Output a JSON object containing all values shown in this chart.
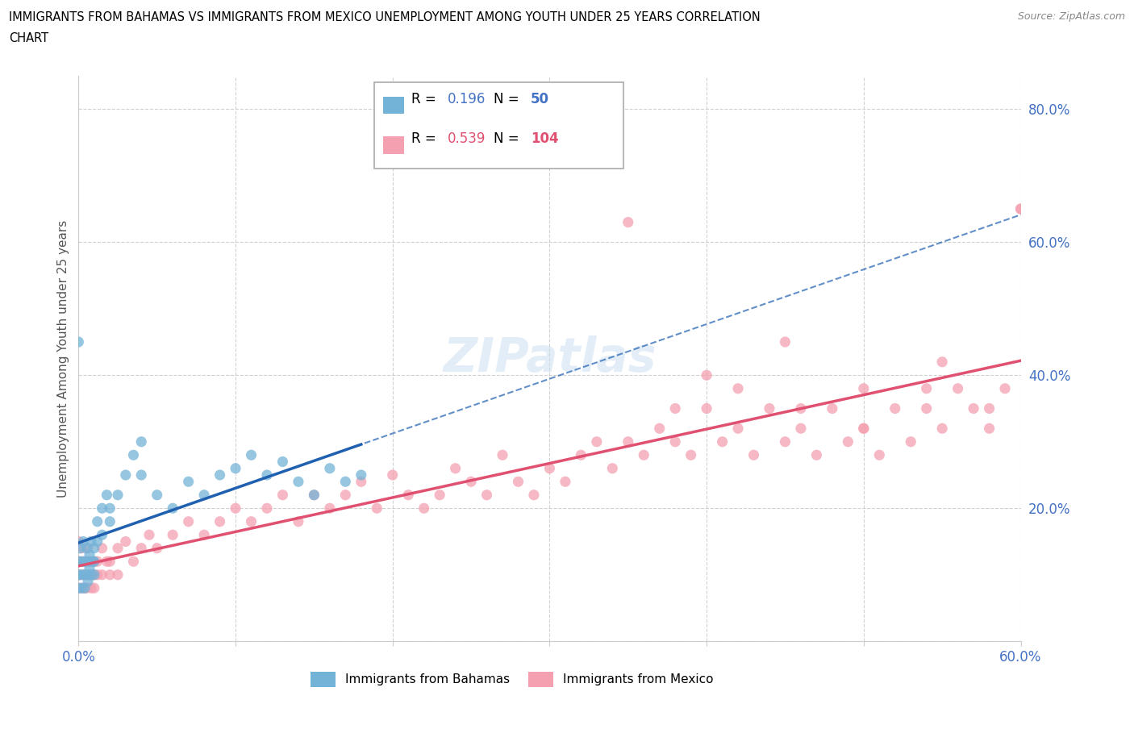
{
  "title_line1": "IMMIGRANTS FROM BAHAMAS VS IMMIGRANTS FROM MEXICO UNEMPLOYMENT AMONG YOUTH UNDER 25 YEARS CORRELATION",
  "title_line2": "CHART",
  "source": "Source: ZipAtlas.com",
  "ylabel": "Unemployment Among Youth under 25 years",
  "xlim": [
    0.0,
    0.6
  ],
  "ylim": [
    0.0,
    0.85
  ],
  "bahamas_color": "#74b3d8",
  "mexico_color": "#f4a0b0",
  "bahamas_line_color": "#2060b0",
  "mexico_line_color": "#e05070",
  "R_bahamas": 0.196,
  "N_bahamas": 50,
  "R_mexico": 0.539,
  "N_mexico": 104,
  "tick_color": "#4472c4",
  "watermark_color": "#c8ddf0",
  "bahamas_x": [
    0.0,
    0.0,
    0.0,
    0.001,
    0.001,
    0.002,
    0.002,
    0.003,
    0.003,
    0.004,
    0.004,
    0.005,
    0.005,
    0.006,
    0.006,
    0.007,
    0.007,
    0.008,
    0.008,
    0.009,
    0.01,
    0.01,
    0.01,
    0.012,
    0.012,
    0.015,
    0.015,
    0.018,
    0.02,
    0.02,
    0.025,
    0.03,
    0.035,
    0.04,
    0.04,
    0.05,
    0.06,
    0.07,
    0.08,
    0.09,
    0.1,
    0.11,
    0.12,
    0.13,
    0.14,
    0.15,
    0.16,
    0.17,
    0.18,
    0.0
  ],
  "bahamas_y": [
    0.1,
    0.12,
    0.08,
    0.14,
    0.1,
    0.12,
    0.08,
    0.15,
    0.1,
    0.12,
    0.08,
    0.14,
    0.1,
    0.12,
    0.09,
    0.13,
    0.11,
    0.1,
    0.15,
    0.12,
    0.14,
    0.1,
    0.12,
    0.18,
    0.15,
    0.2,
    0.16,
    0.22,
    0.2,
    0.18,
    0.22,
    0.25,
    0.28,
    0.25,
    0.3,
    0.22,
    0.2,
    0.24,
    0.22,
    0.25,
    0.26,
    0.28,
    0.25,
    0.27,
    0.24,
    0.22,
    0.26,
    0.24,
    0.25,
    0.45
  ],
  "mexico_x": [
    0.0,
    0.0,
    0.0,
    0.0,
    0.001,
    0.001,
    0.002,
    0.002,
    0.003,
    0.003,
    0.004,
    0.004,
    0.005,
    0.005,
    0.006,
    0.006,
    0.007,
    0.008,
    0.008,
    0.009,
    0.01,
    0.01,
    0.01,
    0.012,
    0.012,
    0.015,
    0.015,
    0.018,
    0.02,
    0.02,
    0.025,
    0.025,
    0.03,
    0.035,
    0.04,
    0.045,
    0.05,
    0.06,
    0.07,
    0.08,
    0.09,
    0.1,
    0.11,
    0.12,
    0.13,
    0.14,
    0.15,
    0.16,
    0.17,
    0.18,
    0.19,
    0.2,
    0.21,
    0.22,
    0.23,
    0.24,
    0.25,
    0.26,
    0.27,
    0.28,
    0.29,
    0.3,
    0.31,
    0.32,
    0.33,
    0.34,
    0.35,
    0.36,
    0.37,
    0.38,
    0.39,
    0.4,
    0.41,
    0.42,
    0.43,
    0.44,
    0.45,
    0.46,
    0.47,
    0.48,
    0.49,
    0.5,
    0.51,
    0.52,
    0.53,
    0.54,
    0.55,
    0.56,
    0.57,
    0.58,
    0.59,
    0.6,
    0.35,
    0.4,
    0.45,
    0.5,
    0.55,
    0.6,
    0.38,
    0.42,
    0.46,
    0.5,
    0.54,
    0.58
  ],
  "mexico_y": [
    0.1,
    0.12,
    0.08,
    0.15,
    0.1,
    0.12,
    0.08,
    0.14,
    0.1,
    0.12,
    0.08,
    0.1,
    0.12,
    0.08,
    0.1,
    0.14,
    0.1,
    0.08,
    0.12,
    0.1,
    0.1,
    0.12,
    0.08,
    0.12,
    0.1,
    0.14,
    0.1,
    0.12,
    0.12,
    0.1,
    0.14,
    0.1,
    0.15,
    0.12,
    0.14,
    0.16,
    0.14,
    0.16,
    0.18,
    0.16,
    0.18,
    0.2,
    0.18,
    0.2,
    0.22,
    0.18,
    0.22,
    0.2,
    0.22,
    0.24,
    0.2,
    0.25,
    0.22,
    0.2,
    0.22,
    0.26,
    0.24,
    0.22,
    0.28,
    0.24,
    0.22,
    0.26,
    0.24,
    0.28,
    0.3,
    0.26,
    0.3,
    0.28,
    0.32,
    0.3,
    0.28,
    0.35,
    0.3,
    0.32,
    0.28,
    0.35,
    0.3,
    0.32,
    0.28,
    0.35,
    0.3,
    0.32,
    0.28,
    0.35,
    0.3,
    0.35,
    0.32,
    0.38,
    0.35,
    0.32,
    0.38,
    0.65,
    0.63,
    0.4,
    0.45,
    0.38,
    0.42,
    0.65,
    0.35,
    0.38,
    0.35,
    0.32,
    0.38,
    0.35
  ]
}
